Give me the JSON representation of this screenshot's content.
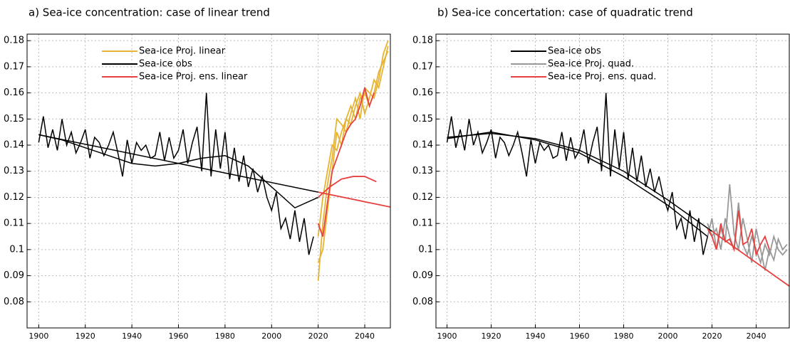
{
  "chart_data": [
    {
      "type": "line",
      "title": "a) Sea-ice concentration: case of linear trend",
      "xlim": [
        1895,
        2051
      ],
      "ylim": [
        0.07,
        0.1825
      ],
      "xticks": [
        1900,
        1920,
        1940,
        1960,
        1980,
        2000,
        2020,
        2040
      ],
      "yticks": [
        0.08,
        0.09,
        0.1,
        0.11,
        0.12,
        0.13,
        0.14,
        0.15,
        0.16,
        0.17,
        0.18
      ],
      "grid": true,
      "series": [
        {
          "color": "#e6b434",
          "x": [
            2020,
            2022,
            2024,
            2026,
            2028,
            2030,
            2032,
            2034,
            2036,
            2038,
            2040,
            2042,
            2044,
            2046,
            2048,
            2050
          ],
          "values": [
            0.105,
            0.12,
            0.13,
            0.14,
            0.138,
            0.145,
            0.15,
            0.148,
            0.155,
            0.16,
            0.152,
            0.158,
            0.165,
            0.162,
            0.17,
            0.178
          ]
        },
        {
          "color": "#e6b434",
          "x": [
            2020,
            2022,
            2024,
            2026,
            2028,
            2030,
            2032,
            2034,
            2036,
            2038,
            2040,
            2042,
            2044,
            2046,
            2048,
            2050
          ],
          "values": [
            0.095,
            0.1,
            0.115,
            0.13,
            0.145,
            0.14,
            0.15,
            0.155,
            0.15,
            0.158,
            0.16,
            0.155,
            0.16,
            0.168,
            0.172,
            0.176
          ]
        },
        {
          "name": "Sea-ice Proj. linear",
          "color": "#e6b434",
          "x": [
            2020,
            2022,
            2024,
            2026,
            2028,
            2030,
            2032,
            2034,
            2036,
            2038,
            2040,
            2042,
            2044,
            2046,
            2048,
            2050
          ],
          "values": [
            0.088,
            0.11,
            0.125,
            0.135,
            0.15,
            0.148,
            0.145,
            0.152,
            0.158,
            0.15,
            0.162,
            0.16,
            0.158,
            0.165,
            0.175,
            0.18
          ]
        },
        {
          "name": "Sea-ice obs",
          "color": "#000000",
          "x": [
            1900,
            1902,
            1904,
            1906,
            1908,
            1910,
            1912,
            1914,
            1916,
            1918,
            1920,
            1922,
            1924,
            1926,
            1928,
            1930,
            1932,
            1934,
            1936,
            1938,
            1940,
            1942,
            1944,
            1946,
            1948,
            1950,
            1952,
            1954,
            1956,
            1958,
            1960,
            1962,
            1964,
            1966,
            1968,
            1970,
            1972,
            1974,
            1976,
            1978,
            1980,
            1982,
            1984,
            1986,
            1988,
            1990,
            1992,
            1994,
            1996,
            1998,
            2000,
            2002,
            2004,
            2006,
            2008,
            2010,
            2012,
            2014,
            2016,
            2018
          ],
          "values": [
            0.141,
            0.151,
            0.139,
            0.146,
            0.138,
            0.15,
            0.14,
            0.145,
            0.137,
            0.141,
            0.146,
            0.135,
            0.143,
            0.141,
            0.136,
            0.14,
            0.145,
            0.137,
            0.128,
            0.142,
            0.133,
            0.141,
            0.138,
            0.14,
            0.135,
            0.136,
            0.145,
            0.134,
            0.143,
            0.135,
            0.138,
            0.146,
            0.133,
            0.141,
            0.147,
            0.13,
            0.16,
            0.128,
            0.146,
            0.131,
            0.145,
            0.127,
            0.139,
            0.126,
            0.136,
            0.124,
            0.131,
            0.122,
            0.128,
            0.12,
            0.115,
            0.122,
            0.108,
            0.112,
            0.104,
            0.115,
            0.103,
            0.112,
            0.098,
            0.105
          ]
        },
        {
          "color": "#000000",
          "x": [
            1900,
            1910,
            1920,
            1930,
            1940,
            1950,
            1960,
            1970,
            1980,
            1990,
            2000,
            2010,
            2020
          ],
          "values": [
            0.144,
            0.142,
            0.139,
            0.136,
            0.133,
            0.132,
            0.133,
            0.135,
            0.136,
            0.132,
            0.124,
            0.116,
            0.12
          ]
        },
        {
          "color": "#000000",
          "x": [
            1900,
            2020
          ],
          "values": [
            0.144,
            0.122
          ]
        },
        {
          "color": "#e8403f",
          "x": [
            2020,
            2025,
            2030,
            2035,
            2040,
            2045
          ],
          "values": [
            0.12,
            0.124,
            0.127,
            0.128,
            0.128,
            0.126
          ]
        },
        {
          "color": "#e8403f",
          "x": [
            2020,
            2051
          ],
          "values": [
            0.122,
            0.1163
          ]
        },
        {
          "name": "Sea-ice Proj. ens. linear",
          "color": "#e8403f",
          "x": [
            2020,
            2022,
            2024,
            2026,
            2028,
            2030,
            2032,
            2034,
            2036,
            2038,
            2040,
            2042,
            2044
          ],
          "values": [
            0.11,
            0.105,
            0.118,
            0.13,
            0.135,
            0.14,
            0.145,
            0.148,
            0.15,
            0.155,
            0.162,
            0.155,
            0.16
          ]
        }
      ]
    },
    {
      "type": "line",
      "title": "b) Sea-ice concertation: case of quadratic trend",
      "xlim": [
        1895,
        2055
      ],
      "ylim": [
        0.07,
        0.1825
      ],
      "xticks": [
        1900,
        1920,
        1940,
        1960,
        1980,
        2000,
        2020,
        2040
      ],
      "yticks": [
        0.08,
        0.09,
        0.1,
        0.11,
        0.12,
        0.13,
        0.14,
        0.15,
        0.16,
        0.17,
        0.18
      ],
      "grid": true,
      "series": [
        {
          "name": "Sea-ice obs",
          "color": "#000000",
          "x": [
            1900,
            1902,
            1904,
            1906,
            1908,
            1910,
            1912,
            1914,
            1916,
            1918,
            1920,
            1922,
            1924,
            1926,
            1928,
            1930,
            1932,
            1934,
            1936,
            1938,
            1940,
            1942,
            1944,
            1946,
            1948,
            1950,
            1952,
            1954,
            1956,
            1958,
            1960,
            1962,
            1964,
            1966,
            1968,
            1970,
            1972,
            1974,
            1976,
            1978,
            1980,
            1982,
            1984,
            1986,
            1988,
            1990,
            1992,
            1994,
            1996,
            1998,
            2000,
            2002,
            2004,
            2006,
            2008,
            2010,
            2012,
            2014,
            2016,
            2018
          ],
          "values": [
            0.141,
            0.151,
            0.139,
            0.146,
            0.138,
            0.15,
            0.14,
            0.145,
            0.137,
            0.141,
            0.146,
            0.135,
            0.143,
            0.141,
            0.136,
            0.14,
            0.145,
            0.137,
            0.128,
            0.142,
            0.133,
            0.141,
            0.138,
            0.14,
            0.135,
            0.136,
            0.145,
            0.134,
            0.143,
            0.135,
            0.138,
            0.146,
            0.133,
            0.141,
            0.147,
            0.13,
            0.16,
            0.128,
            0.146,
            0.131,
            0.145,
            0.127,
            0.139,
            0.126,
            0.136,
            0.124,
            0.131,
            0.122,
            0.128,
            0.12,
            0.115,
            0.122,
            0.108,
            0.112,
            0.104,
            0.115,
            0.103,
            0.112,
            0.098,
            0.105
          ]
        },
        {
          "name": "Sea-ice Proj. quad.",
          "color": "#999999",
          "x": [
            2018,
            2020,
            2022,
            2024,
            2026,
            2028,
            2030,
            2032,
            2034,
            2036,
            2038,
            2040,
            2042,
            2044,
            2046,
            2048,
            2050,
            2052,
            2054
          ],
          "values": [
            0.11,
            0.105,
            0.108,
            0.1,
            0.112,
            0.105,
            0.1,
            0.118,
            0.102,
            0.098,
            0.105,
            0.1,
            0.095,
            0.102,
            0.098,
            0.105,
            0.1,
            0.098,
            0.1
          ]
        },
        {
          "color": "#999999",
          "x": [
            2018,
            2020,
            2022,
            2024,
            2026,
            2028,
            2030,
            2032,
            2034,
            2036,
            2038,
            2040,
            2042,
            2044,
            2046,
            2048,
            2050,
            2052,
            2054
          ],
          "values": [
            0.105,
            0.112,
            0.1,
            0.108,
            0.103,
            0.125,
            0.106,
            0.1,
            0.112,
            0.104,
            0.095,
            0.108,
            0.1,
            0.092,
            0.1,
            0.096,
            0.104,
            0.1,
            0.102
          ]
        },
        {
          "color": "#000000",
          "x": [
            1900,
            1920,
            1940,
            1960,
            1980,
            2000,
            2018
          ],
          "values": [
            0.1425,
            0.145,
            0.142,
            0.137,
            0.128,
            0.117,
            0.105
          ]
        },
        {
          "color": "#000000",
          "x": [
            1900,
            1920,
            1940,
            1960,
            1980,
            2000,
            2020
          ],
          "values": [
            0.143,
            0.1445,
            0.1425,
            0.138,
            0.13,
            0.119,
            0.107
          ]
        },
        {
          "color": "#e8403f",
          "x": [
            2020,
            2040,
            2055
          ],
          "values": [
            0.107,
            0.095,
            0.086
          ]
        },
        {
          "name": "Sea-ice Proj. ens. quad.",
          "color": "#e8403f",
          "x": [
            2018,
            2020,
            2022,
            2024,
            2026,
            2028,
            2030,
            2032,
            2034,
            2036,
            2038,
            2040,
            2042,
            2044,
            2046
          ],
          "values": [
            0.108,
            0.105,
            0.1,
            0.11,
            0.103,
            0.104,
            0.1,
            0.115,
            0.102,
            0.103,
            0.108,
            0.098,
            0.102,
            0.105,
            0.1
          ]
        }
      ]
    }
  ]
}
